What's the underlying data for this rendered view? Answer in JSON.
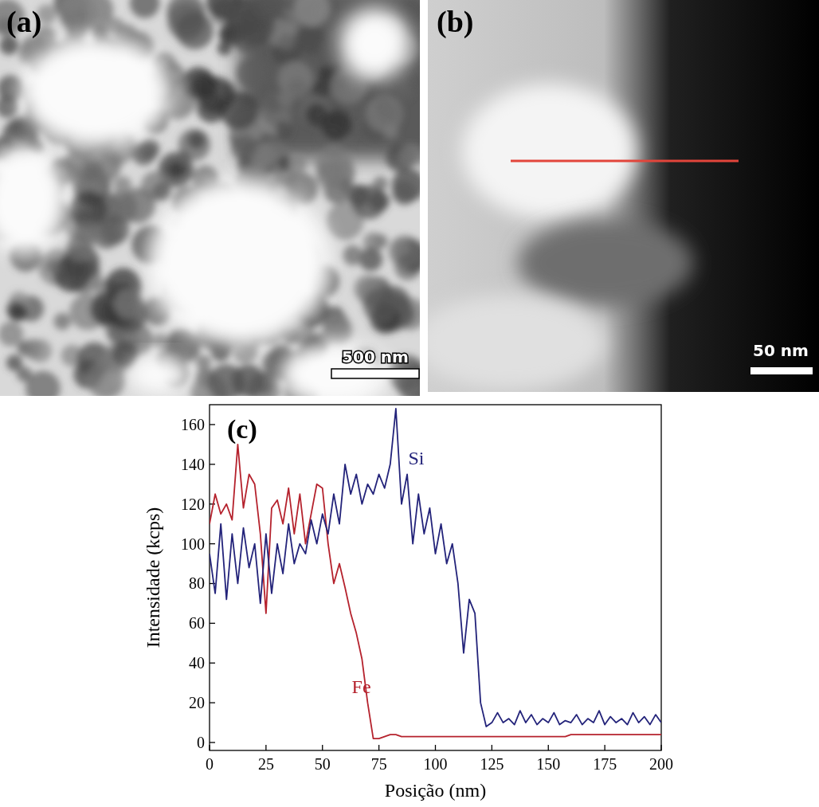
{
  "panels": [
    {
      "label": "(a)",
      "scale_bar": "500 nm"
    },
    {
      "label": "(b)",
      "scale_bar": "50 nm"
    }
  ],
  "chart_data": {
    "type": "line",
    "panel_label": "(c)",
    "x_label": "Posição (nm)",
    "y_label": "Intensidade (kcps)",
    "x": [
      0,
      2.5,
      5,
      7.5,
      10,
      12.5,
      15,
      17.5,
      20,
      22.5,
      25,
      27.5,
      30,
      32.5,
      35,
      37.5,
      40,
      42.5,
      45,
      47.5,
      50,
      52.5,
      55,
      57.5,
      60,
      62.5,
      65,
      67.5,
      70,
      72.5,
      75,
      77.5,
      80,
      82.5,
      85,
      87.5,
      90,
      92.5,
      95,
      97.5,
      100,
      102.5,
      105,
      107.5,
      110,
      112.5,
      115,
      117.5,
      120,
      122.5,
      125,
      127.5,
      130,
      132.5,
      135,
      137.5,
      140,
      142.5,
      145,
      147.5,
      150,
      152.5,
      155,
      157.5,
      160,
      162.5,
      165,
      167.5,
      170,
      172.5,
      175,
      177.5,
      180,
      182.5,
      185,
      187.5,
      190,
      192.5,
      195,
      197.5,
      200
    ],
    "series": [
      {
        "name": "Fe",
        "color": "#b5222d",
        "values": [
          110,
          125,
          115,
          120,
          112,
          150,
          118,
          135,
          130,
          105,
          65,
          118,
          122,
          110,
          128,
          105,
          125,
          100,
          115,
          130,
          128,
          100,
          80,
          90,
          78,
          65,
          55,
          42,
          20,
          2,
          2,
          3,
          4,
          4,
          3,
          3,
          3,
          3,
          3,
          3,
          3,
          3,
          3,
          3,
          3,
          3,
          3,
          3,
          3,
          3,
          3,
          3,
          3,
          3,
          3,
          3,
          3,
          3,
          3,
          3,
          3,
          3,
          3,
          3,
          4,
          4,
          4,
          4,
          4,
          4,
          4,
          4,
          4,
          4,
          4,
          4,
          4,
          4,
          4,
          4,
          4
        ]
      },
      {
        "name": "Si",
        "color": "#23237a",
        "values": [
          95,
          75,
          110,
          72,
          105,
          80,
          108,
          88,
          100,
          70,
          105,
          75,
          100,
          85,
          110,
          90,
          100,
          95,
          112,
          100,
          115,
          105,
          125,
          110,
          140,
          125,
          135,
          120,
          130,
          125,
          135,
          128,
          140,
          168,
          120,
          135,
          100,
          125,
          105,
          118,
          95,
          110,
          90,
          100,
          80,
          45,
          72,
          65,
          20,
          8,
          10,
          15,
          10,
          12,
          9,
          16,
          10,
          14,
          9,
          12,
          10,
          15,
          9,
          11,
          10,
          14,
          9,
          12,
          10,
          16,
          9,
          13,
          10,
          12,
          9,
          15,
          10,
          13,
          9,
          14,
          10
        ]
      }
    ],
    "xlim": [
      0,
      200
    ],
    "ylim": [
      -4,
      170
    ],
    "xticks": [
      0,
      25,
      50,
      75,
      100,
      125,
      150,
      175,
      200
    ],
    "yticks": [
      0,
      20,
      40,
      60,
      80,
      100,
      120,
      140,
      160
    ],
    "grid": false
  }
}
